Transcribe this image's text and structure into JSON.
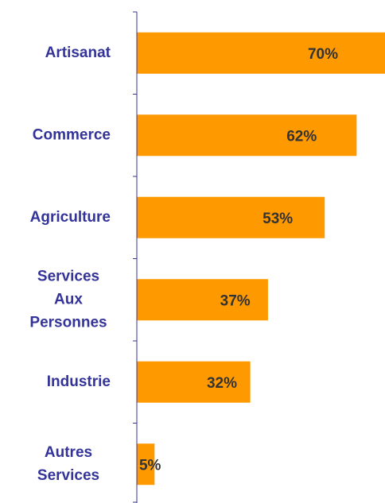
{
  "chart_data": {
    "type": "bar",
    "orientation": "horizontal",
    "categories": [
      "Artisanat",
      "Commerce",
      "Agriculture",
      "Services Aux Personnes",
      "Industrie",
      "Autres Services"
    ],
    "values": [
      70,
      62,
      53,
      37,
      32,
      5
    ],
    "value_labels": [
      "70%",
      "62%",
      "53%",
      "37%",
      "32%",
      "5%"
    ],
    "color": "#FF9900",
    "xlim": [
      0,
      70
    ]
  }
}
